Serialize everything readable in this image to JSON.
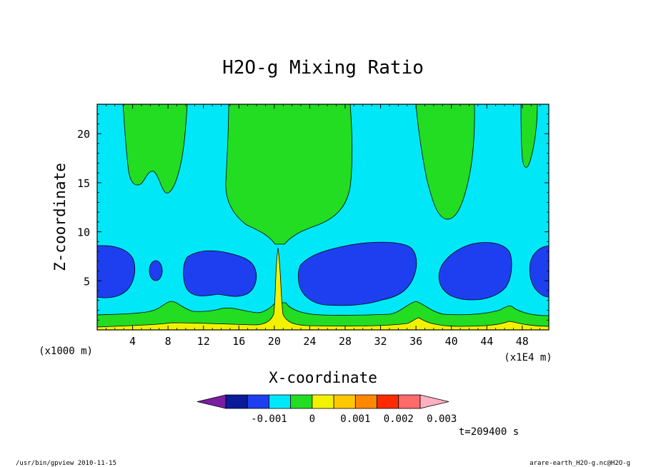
{
  "chart_data": {
    "type": "heatmap",
    "title": "H2O-g Mixing Ratio",
    "xlabel": "X-coordinate",
    "ylabel": "Z-coordinate",
    "xlim": [
      0,
      51
    ],
    "ylim": [
      0,
      23
    ],
    "x_ticks": [
      4,
      8,
      12,
      16,
      20,
      24,
      28,
      32,
      36,
      40,
      44,
      48
    ],
    "y_ticks": [
      5,
      10,
      15,
      20
    ],
    "x_scale_left": "(x1000 m)",
    "x_scale_right": "(x1E4 m)",
    "time_label": "t=209400 s",
    "colorbar": {
      "levels": [
        -0.0025,
        -0.002,
        -0.0015,
        -0.001,
        -0.0005,
        0,
        0.0005,
        0.001,
        0.0015,
        0.002,
        0.0025,
        0.003,
        0.0035
      ],
      "colors": [
        "#7a1fa2",
        "#0a1a99",
        "#1e3ff0",
        "#00e8f8",
        "#22dd22",
        "#f2f200",
        "#ffc800",
        "#ff8800",
        "#ff2a00",
        "#ff6a6a",
        "#ffb0c0"
      ],
      "tick_labels": [
        "-0.001",
        "0",
        "0.001",
        "0.002",
        "0.003"
      ],
      "tick_values": [
        -0.001,
        0,
        0.001,
        0.002,
        0.003
      ]
    },
    "fill_regions": [
      {
        "name": "background",
        "level": "cyan",
        "color": "#00e8f8"
      },
      {
        "name": "upper-green-1",
        "level": "green",
        "color": "#22dd22"
      },
      {
        "name": "upper-green-2",
        "level": "green",
        "color": "#22dd22"
      },
      {
        "name": "upper-green-3",
        "level": "green",
        "color": "#22dd22"
      },
      {
        "name": "upper-green-4",
        "level": "green",
        "color": "#22dd22"
      },
      {
        "name": "low-green-band",
        "level": "green",
        "color": "#22dd22"
      },
      {
        "name": "yellow-plume",
        "level": "yellow",
        "color": "#f2f200"
      },
      {
        "name": "blue-cell-1",
        "level": "blue",
        "color": "#1e3ff0"
      },
      {
        "name": "blue-cell-2",
        "level": "blue",
        "color": "#1e3ff0"
      },
      {
        "name": "blue-cell-3",
        "level": "blue",
        "color": "#1e3ff0"
      },
      {
        "name": "blue-cell-4",
        "level": "blue",
        "color": "#1e3ff0"
      },
      {
        "name": "blue-cell-5",
        "level": "blue",
        "color": "#1e3ff0"
      },
      {
        "name": "blue-cell-6",
        "level": "blue",
        "color": "#1e3ff0"
      }
    ]
  },
  "footer": {
    "left": "/usr/bin/gpview   2010-11-15",
    "right": "arare-earth_H2O-g.nc@H2O-g"
  }
}
